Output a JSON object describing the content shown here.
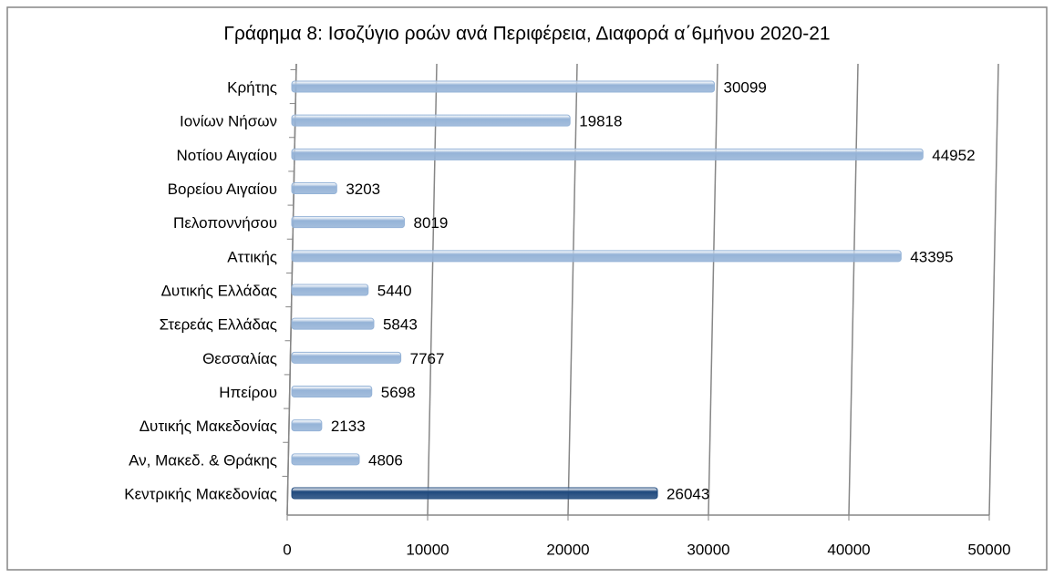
{
  "chart_data": {
    "type": "barh",
    "title": "Γράφημα 8: Ισοζύγιο ροών ανά Περιφέρεια, Διαφορά α΄6μήνου 2020-21",
    "categories": [
      "Κρήτης",
      "Ιονίων Νήσων",
      "Νοτίου Αιγαίου",
      "Βορείου Αιγαίου",
      "Πελοποννήσου",
      "Αττικής",
      "Δυτικής Ελλάδας",
      "Στερεάς Ελλάδας",
      "Θεσσαλίας",
      "Ηπείρου",
      "Δυτικής Μακεδονίας",
      "Αν, Μακεδ. & Θράκης",
      "Κεντρικής Μακεδονίας"
    ],
    "values": [
      30099,
      19818,
      44952,
      3203,
      8019,
      43395,
      5440,
      5843,
      7767,
      5698,
      2133,
      4806,
      26043
    ],
    "colors": [
      "#95b3d7",
      "#95b3d7",
      "#95b3d7",
      "#95b3d7",
      "#95b3d7",
      "#95b3d7",
      "#95b3d7",
      "#95b3d7",
      "#95b3d7",
      "#95b3d7",
      "#95b3d7",
      "#95b3d7",
      "#1f497d"
    ],
    "xlim": [
      0,
      50000
    ],
    "xticks": [
      0,
      10000,
      20000,
      30000,
      40000,
      50000
    ],
    "grid": true
  }
}
